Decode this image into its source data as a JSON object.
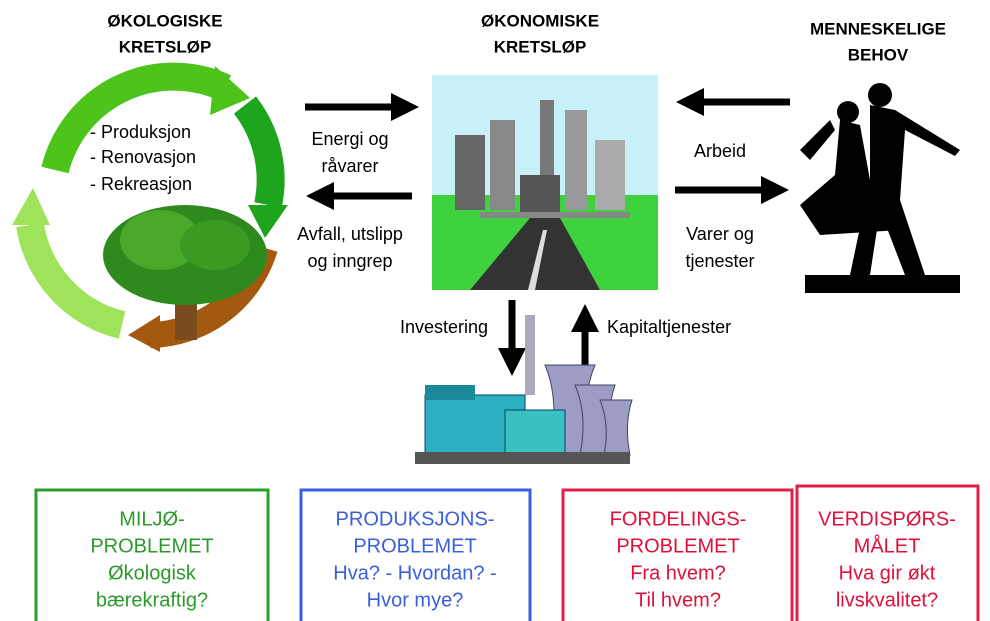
{
  "titles": {
    "ecology": [
      "ØKOLOGISKE",
      "KRETSLØP"
    ],
    "economy": [
      "ØKONOMISKE",
      "KRETSLØP"
    ],
    "human": [
      "MENNESKELIGE",
      "BEHOV"
    ]
  },
  "ecology_list": [
    "- Produksjon",
    "- Renovasjon",
    "- Rekreasjon"
  ],
  "arrows": {
    "in_left": [
      "Energi og",
      "råvarer"
    ],
    "out_left": [
      "Avfall, utslipp",
      "og inngrep"
    ],
    "in_right": [
      "Arbeid"
    ],
    "out_right": [
      "Varer og",
      "tjenester"
    ],
    "down": [
      "Investering"
    ],
    "up": [
      "Kapitaltjenester"
    ]
  },
  "boxes": [
    [
      "MILJØ-",
      "PROBLEMET",
      "Økologisk",
      "bærekraftig?"
    ],
    [
      "PRODUKSJONS-",
      "PROBLEMET",
      "Hva? - Hvordan? -",
      "Hvor mye?"
    ],
    [
      "FORDELINGS-",
      "PROBLEMET",
      "Fra hvem?",
      "Til hvem?"
    ],
    [
      "VERDISPØRS-",
      "MÅLET",
      "Hva gir økt",
      "livskvalitet?"
    ]
  ]
}
